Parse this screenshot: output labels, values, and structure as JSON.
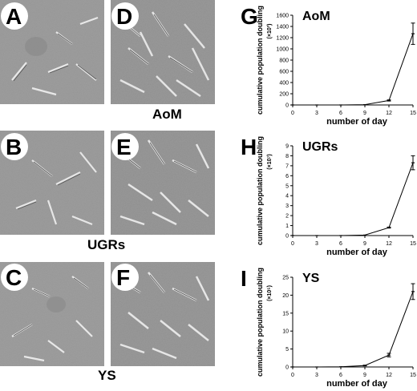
{
  "panels": {
    "A": "A",
    "B": "B",
    "C": "C",
    "D": "D",
    "E": "E",
    "F": "F",
    "G": "G",
    "H": "H",
    "I": "I"
  },
  "groups": [
    "AoM",
    "UGRs",
    "YS"
  ],
  "colors": {
    "micro_bg": "#9a9a9a",
    "line": "#000000"
  },
  "chart_data": [
    {
      "type": "line",
      "panel": "G",
      "title": "AoM",
      "xlabel": "number of day",
      "ylabel": "cumulative population doubling",
      "yunit": "(×10³)",
      "x": [
        0,
        3,
        6,
        9,
        12,
        15
      ],
      "xticks": [
        0,
        3,
        6,
        9,
        12,
        15
      ],
      "values": [
        0,
        0,
        0,
        5,
        80,
        1270
      ],
      "errors": [
        0,
        0,
        0,
        0,
        10,
        190
      ],
      "ylim": [
        0,
        1600
      ],
      "yticks": [
        0,
        200,
        400,
        600,
        800,
        1000,
        1200,
        1400,
        1600
      ]
    },
    {
      "type": "line",
      "panel": "H",
      "title": "UGRs",
      "xlabel": "number of day",
      "ylabel": "cumulative population doubling",
      "yunit": "(×10⁷)",
      "x": [
        0,
        3,
        6,
        9,
        12,
        15
      ],
      "xticks": [
        0,
        3,
        6,
        9,
        12,
        15
      ],
      "values": [
        0,
        0,
        0,
        0.05,
        0.8,
        7.3
      ],
      "errors": [
        0,
        0,
        0,
        0,
        0.05,
        0.7
      ],
      "ylim": [
        0,
        9
      ],
      "yticks": [
        0,
        1,
        2,
        3,
        4,
        5,
        6,
        7,
        8,
        9
      ]
    },
    {
      "type": "line",
      "panel": "I",
      "title": "YS",
      "xlabel": "number of day",
      "ylabel": "cumulative population doubling",
      "yunit": "(×10⁵)",
      "x": [
        0,
        3,
        6,
        9,
        12,
        15
      ],
      "xticks": [
        0,
        3,
        6,
        9,
        12,
        15
      ],
      "values": [
        0,
        0,
        0.05,
        0.4,
        3.3,
        21
      ],
      "errors": [
        0,
        0,
        0,
        0.1,
        0.5,
        2.2
      ],
      "ylim": [
        0,
        25
      ],
      "yticks": [
        0,
        5,
        10,
        15,
        20,
        25
      ]
    }
  ]
}
